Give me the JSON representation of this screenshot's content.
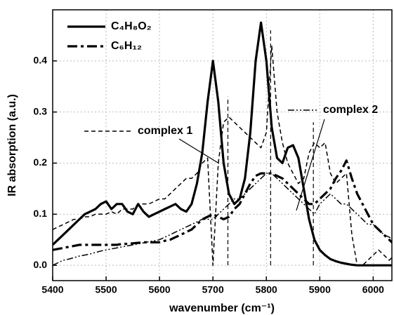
{
  "chart_data": {
    "type": "line",
    "x_label": "wavenumber (cm⁻¹)",
    "y_label": "IR absorption (a.u.)",
    "x": [
      5400,
      5410,
      5420,
      5430,
      5440,
      5450,
      5460,
      5470,
      5480,
      5490,
      5500,
      5510,
      5520,
      5530,
      5540,
      5550,
      5560,
      5570,
      5580,
      5590,
      5600,
      5610,
      5620,
      5630,
      5640,
      5650,
      5660,
      5670,
      5680,
      5690,
      5700,
      5710,
      5720,
      5730,
      5740,
      5750,
      5760,
      5770,
      5780,
      5790,
      5800,
      5810,
      5820,
      5830,
      5840,
      5850,
      5860,
      5870,
      5880,
      5890,
      5900,
      5910,
      5920,
      5930,
      5940,
      5950,
      5960,
      5970,
      5980,
      5990,
      6000,
      6010,
      6020,
      6030,
      6040
    ],
    "series": [
      {
        "name": "C₄H₈O₂",
        "color": "#000000",
        "linestyle": "solid",
        "linewidth": 3.2,
        "values": [
          0.04,
          0.05,
          0.06,
          0.07,
          0.08,
          0.09,
          0.1,
          0.105,
          0.11,
          0.12,
          0.125,
          0.11,
          0.12,
          0.12,
          0.105,
          0.1,
          0.12,
          0.105,
          0.095,
          0.1,
          0.105,
          0.11,
          0.115,
          0.12,
          0.11,
          0.105,
          0.12,
          0.16,
          0.22,
          0.32,
          0.4,
          0.32,
          0.2,
          0.14,
          0.12,
          0.13,
          0.17,
          0.26,
          0.4,
          0.475,
          0.4,
          0.27,
          0.21,
          0.2,
          0.23,
          0.235,
          0.21,
          0.15,
          0.09,
          0.05,
          0.03,
          0.02,
          0.012,
          0.008,
          0.005,
          0.003,
          0.001,
          0,
          0,
          0,
          0,
          0,
          0,
          0,
          0
        ]
      },
      {
        "name": "C₆H₁₂",
        "color": "#000000",
        "linestyle": "dash-dot",
        "linewidth": 3.2,
        "values": [
          0.03,
          0.032,
          0.034,
          0.036,
          0.038,
          0.04,
          0.04,
          0.04,
          0.04,
          0.04,
          0.04,
          0.04,
          0.04,
          0.042,
          0.042,
          0.043,
          0.044,
          0.045,
          0.045,
          0.045,
          0.045,
          0.048,
          0.05,
          0.055,
          0.06,
          0.065,
          0.07,
          0.08,
          0.09,
          0.095,
          0.1,
          0.095,
          0.09,
          0.095,
          0.11,
          0.12,
          0.14,
          0.16,
          0.175,
          0.18,
          0.18,
          0.18,
          0.175,
          0.17,
          0.16,
          0.15,
          0.14,
          0.13,
          0.12,
          0.12,
          0.13,
          0.14,
          0.15,
          0.17,
          0.185,
          0.205,
          0.17,
          0.14,
          0.12,
          0.1,
          0.08,
          0.07,
          0.06,
          0.05,
          0.04
        ]
      },
      {
        "name": "complex 1",
        "color": "#000000",
        "linestyle": "dash",
        "linewidth": 1.5,
        "values": [
          0.07,
          0.075,
          0.08,
          0.085,
          0.09,
          0.09,
          0.095,
          0.095,
          0.1,
          0.1,
          0.1,
          0.105,
          0.1,
          0.11,
          0.11,
          0.11,
          0.12,
          0.12,
          0.12,
          0.125,
          0.13,
          0.13,
          0.14,
          0.15,
          0.16,
          0.17,
          0.17,
          0.18,
          0.2,
          0.21,
          0.0,
          0.2,
          0.28,
          0.29,
          0.28,
          0.27,
          0.26,
          0.25,
          0.24,
          0.23,
          0.26,
          0.43,
          0.3,
          0.24,
          0.2,
          0.18,
          0.16,
          0.17,
          0.22,
          0.24,
          0.23,
          0.24,
          0.18,
          0.16,
          0.17,
          0.18,
          0.06,
          0.0,
          0.0,
          0.01,
          0.02,
          0.03,
          0.02,
          0.01,
          0.02
        ]
      },
      {
        "name": "complex 2",
        "color": "#000000",
        "linestyle": "dash-dot-dot",
        "linewidth": 1.5,
        "values": [
          0.0,
          0.005,
          0.01,
          0.012,
          0.015,
          0.018,
          0.02,
          0.022,
          0.025,
          0.028,
          0.03,
          0.032,
          0.034,
          0.036,
          0.038,
          0.04,
          0.042,
          0.044,
          0.046,
          0.048,
          0.05,
          0.055,
          0.06,
          0.065,
          0.07,
          0.075,
          0.08,
          0.085,
          0.09,
          0.09,
          0.09,
          0.1,
          0.11,
          0.12,
          0.13,
          0.13,
          0.14,
          0.15,
          0.16,
          0.17,
          0.18,
          0.18,
          0.17,
          0.16,
          0.15,
          0.14,
          0.13,
          0.12,
          0.11,
          0.1,
          0.12,
          0.13,
          0.14,
          0.13,
          0.12,
          0.12,
          0.11,
          0.1,
          0.09,
          0.08,
          0.08,
          0.07,
          0.06,
          0.055,
          0.05
        ]
      }
    ],
    "sticks": {
      "x": [
        5728,
        5808,
        5888
      ],
      "values": [
        0.33,
        0.46,
        0.28
      ],
      "linestyle": "dash"
    },
    "xlim": [
      5400,
      6035
    ],
    "ylim": [
      -0.03,
      0.5
    ],
    "xticks": [
      5400,
      5500,
      5600,
      5700,
      5800,
      5900,
      6000
    ],
    "yticks": [
      {
        "value": 0,
        "label": "0.0"
      },
      0.1,
      0.2,
      0.3,
      0.4
    ],
    "grid": true
  }
}
